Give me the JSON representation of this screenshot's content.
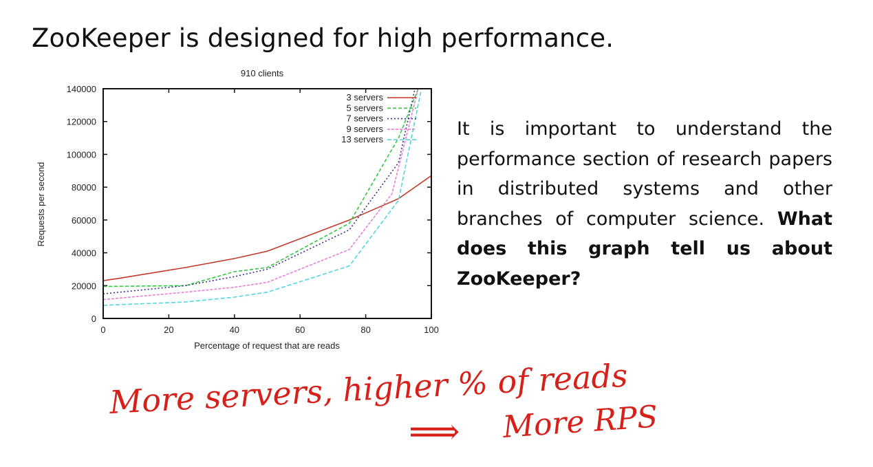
{
  "slide": {
    "title": "ZooKeeper is designed for high performance.",
    "paragraph": "It is important to understand the performance section of research papers in distributed systems and other branches of computer science.",
    "question": "What does this graph tell us about ZooKeeper?"
  },
  "annotation": {
    "line1": "More servers, higher % of reads",
    "arrow": "⟹",
    "line2": "More RPS",
    "color": "#d6201a"
  },
  "chart_data": {
    "type": "line",
    "title": "910 clients",
    "xlabel": "Percentage of request that are reads",
    "ylabel": "Requests per second",
    "xlim": [
      0,
      100
    ],
    "ylim": [
      0,
      140000
    ],
    "xticks": [
      0,
      20,
      40,
      60,
      80,
      100
    ],
    "yticks": [
      0,
      20000,
      40000,
      60000,
      80000,
      100000,
      120000,
      140000
    ],
    "legend_position": "top-right",
    "series": [
      {
        "name": "3 servers",
        "color": "#c0392b",
        "dash": "",
        "x": [
          0,
          5,
          25,
          40,
          50,
          75,
          90,
          100
        ],
        "y": [
          23000,
          24500,
          31000,
          36500,
          41000,
          60000,
          73000,
          87000
        ]
      },
      {
        "name": "5 servers",
        "color": "#2ecc40",
        "dash": "5,3",
        "x": [
          0,
          25,
          40,
          50,
          75,
          90,
          96
        ],
        "y": [
          19500,
          20000,
          28500,
          31000,
          58000,
          110000,
          140000
        ]
      },
      {
        "name": "7 servers",
        "color": "#3b2a8f",
        "dash": "2,3",
        "x": [
          0,
          25,
          40,
          50,
          75,
          90,
          95
        ],
        "y": [
          15000,
          20000,
          25500,
          30000,
          54000,
          95000,
          140000
        ]
      },
      {
        "name": "9 servers",
        "color": "#e87fd8",
        "dash": "4,2",
        "x": [
          0,
          25,
          40,
          50,
          75,
          88,
          96
        ],
        "y": [
          11500,
          16000,
          19000,
          22000,
          42000,
          76000,
          140000
        ]
      },
      {
        "name": "13 servers",
        "color": "#52d6e0",
        "dash": "6,3",
        "x": [
          0,
          25,
          40,
          50,
          75,
          90,
          97
        ],
        "y": [
          8000,
          10000,
          13000,
          16000,
          32000,
          72000,
          140000
        ]
      }
    ]
  }
}
